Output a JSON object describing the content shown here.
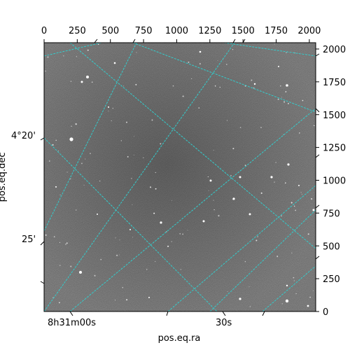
{
  "figure": {
    "xlabel": "pos.eq.ra",
    "ylabel": "pos.eq.dec",
    "grid_color": "#33cccc",
    "frame_color": "#000000"
  },
  "pixel_axes": {
    "top_ticks": [
      "0",
      "250",
      "500",
      "750",
      "1000",
      "1250",
      "1500",
      "1750",
      "2000"
    ],
    "right_ticks": [
      "0",
      "250",
      "500",
      "750",
      "1000",
      "1250",
      "1500",
      "1750",
      "2000"
    ],
    "range": [
      0,
      2048
    ]
  },
  "world_axes": {
    "ra_ticks": [
      "8h31m00s",
      "30s"
    ],
    "dec_ticks": [
      "4°20'",
      "25'"
    ]
  },
  "image": {
    "type": "grayscale astronomical image",
    "colormap": "gray"
  }
}
